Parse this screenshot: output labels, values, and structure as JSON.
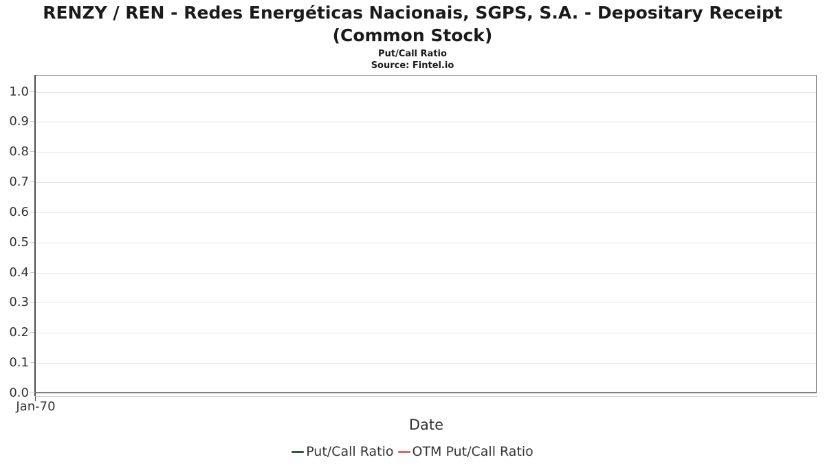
{
  "header": {
    "title_line1": "RENZY / REN - Redes Energéticas Nacionais, SGPS, S.A. - Depositary Receipt",
    "title_line2": "(Common Stock)",
    "subtitle": "Put/Call Ratio",
    "source": "Source: Fintel.io"
  },
  "chart_data": {
    "type": "line",
    "title": "RENZY / REN - Redes Energéticas Nacionais, SGPS, S.A. - Depositary Receipt (Common Stock)",
    "subtitle": "Put/Call Ratio",
    "source": "Source: Fintel.io",
    "xlabel": "Date",
    "ylabel": "",
    "ylim": [
      0.0,
      1.05
    ],
    "ytick_labels": [
      "1.0",
      "0.9",
      "0.8",
      "0.7",
      "0.6",
      "0.5",
      "0.4",
      "0.3",
      "0.2",
      "0.1",
      "0.0"
    ],
    "xtick_labels": [
      "Jan-70"
    ],
    "grid": true,
    "grid_color": "#e6e6e6",
    "legend_position": "bottom-center",
    "series": [
      {
        "name": "Put/Call Ratio",
        "color": "#2b5d3b",
        "x": [],
        "values": []
      },
      {
        "name": "OTM Put/Call Ratio",
        "color": "#f45b5b",
        "x": [],
        "values": []
      }
    ]
  }
}
